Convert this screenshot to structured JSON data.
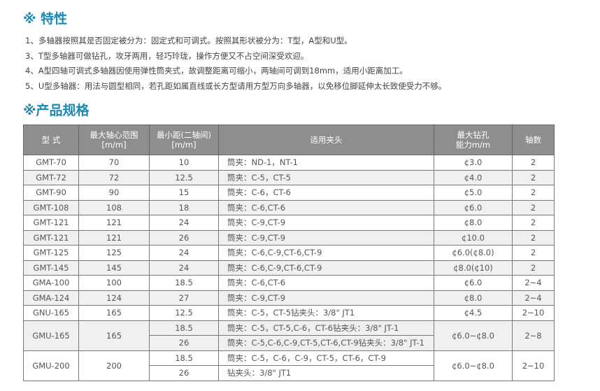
{
  "features": {
    "title": "※ 特性",
    "items": [
      "1、多轴器按照其是否固定被分为：固定式和可调式。按照其形状被分为：T型，A型和U型。",
      "3、T型多轴器可做钻孔，攻牙两用，轻巧玲珑，操作方便又不占空间深受欢迎。",
      "4、A型四轴可调式多轴器因使用弹性筒夹式，故调整距离可缩小，两轴间可调到18mm，适用小距离加工。",
      "5、U型多轴器：用法与圆型相同，若孔距如属直线或长方型请用方型万向多轴器，以免移位脚延伸太长致使受力不够。"
    ]
  },
  "specs": {
    "title": "※产品规格",
    "headers": [
      "型  式",
      "最大轴心范围\n[m/m]",
      "最小距(二轴间)\n[m/m]",
      "适用夹头",
      "最大钻孔\n能力m/m",
      "轴数"
    ],
    "rows": [
      [
        "GMT-70",
        "70",
        "10",
        "筒夹：ND-1，NT-1",
        "¢3.0",
        "2"
      ],
      [
        "GMT-72",
        "72",
        "12.5",
        "筒夹：C-5，CT-5",
        "¢4.0",
        "2"
      ],
      [
        "GMT-90",
        "90",
        "15",
        "筒夹：C-6，CT-6",
        "¢5.0",
        "2"
      ],
      [
        "GMT-108",
        "108",
        "18",
        "筒夹：C-6,CT-6",
        "¢6.0",
        "2"
      ],
      [
        "GMT-121",
        "121",
        "24",
        "筒夹：C-9,CT-9",
        "¢8.0",
        "2"
      ],
      [
        "GMT-121",
        "121",
        "26",
        "筒夹：C-9,CT-9",
        "¢10.0",
        "2"
      ],
      [
        "GMT-125",
        "125",
        "24",
        "筒夹：C-6,C-9,CT-6,CT-9",
        "¢6.0(¢8.0)",
        "2"
      ],
      [
        "GMT-145",
        "145",
        "24",
        "筒夹：C-6,C-9,CT-6,CT-9",
        "¢8.0(¢10)",
        "2"
      ],
      [
        "GMA-100",
        "100",
        "18.5",
        "筒夹：C-6,CT-6",
        "¢6.0",
        "2~4"
      ],
      [
        "GMA-124",
        "124",
        "27",
        "筒夹：C-9,CT-9",
        "¢8.0",
        "2~4"
      ],
      [
        "GNU-165",
        "165",
        "12.5",
        "筒夹：C-5，CT-5钻夹头：3/8\" JT1",
        "¢4.5",
        "2~10"
      ]
    ],
    "gmu165": {
      "model": "GMU-165",
      "range": "165",
      "sub": [
        [
          "18.5",
          "筒夹：C-5，CT-5,C-6，CT-6钻夹头：3/8\" JT-1"
        ],
        [
          "26",
          "筒夹：C-5,C-6,C-9,CT-5,CT-6,CT-9钻夹头：3/8\" JT-1"
        ]
      ],
      "drill": "¢6.0~¢8.0",
      "axes": "2~8"
    },
    "gmu200": {
      "model": "GMU-200",
      "range": "200",
      "sub": [
        [
          "18.5",
          "筒夹：C-5，C-6，C-9，CT-5，CT-6，CT-9"
        ],
        [
          "26",
          "钻夹头：3/8\" JT1"
        ]
      ],
      "drill": "¢6.0~¢8.0",
      "axes": "2~10"
    }
  }
}
